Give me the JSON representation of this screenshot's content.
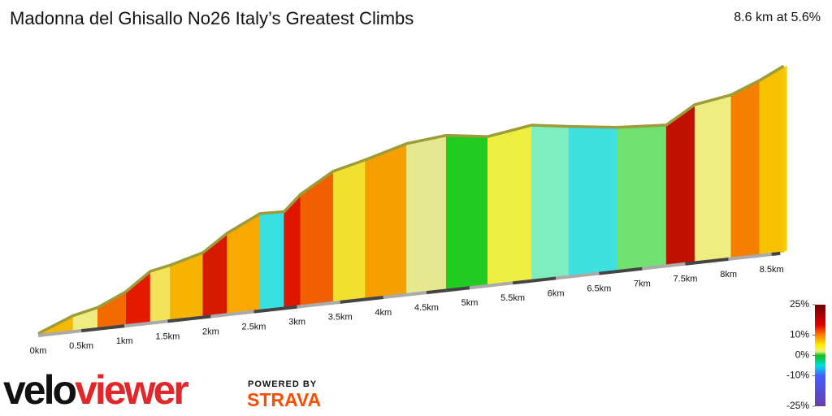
{
  "chart_data": {
    "type": "elevation-profile",
    "title": "Madonna del Ghisallo No26 Italy’s Greatest Climbs",
    "subtitle": "8.6 km at 5.6%",
    "x": [
      0,
      0.405,
      0.69,
      1.02,
      1.3,
      1.53,
      1.91,
      2.19,
      2.57,
      2.85,
      3.04,
      3.42,
      3.79,
      4.27,
      4.73,
      5.21,
      5.72,
      6.15,
      6.71,
      7.28,
      7.61,
      8.03,
      8.36,
      8.64
    ],
    "values": [
      0,
      36,
      50,
      83,
      128,
      138,
      161,
      204,
      245,
      243,
      283,
      333,
      353,
      383,
      393,
      378,
      395,
      381,
      365,
      357,
      401,
      416,
      445,
      475
    ],
    "colors": [
      "#f6b800",
      "#eeee80",
      "#f36a00",
      "#e41a00",
      "#f2e35a",
      "#f6b300",
      "#d61a00",
      "#f8a800",
      "#36e0e0",
      "#e01500",
      "#f06000",
      "#f2e030",
      "#f5a000",
      "#e6e890",
      "#20cc20",
      "#eeee40",
      "#7eeec0",
      "#40e0e0",
      "#70e070",
      "#c01000",
      "#eeee80",
      "#f58000",
      "#f7c000",
      "#f2d000"
    ],
    "xlim": [
      0,
      8.6
    ],
    "ylim": [
      0,
      480
    ],
    "xticks": [
      {
        "value": 0,
        "label": "0km"
      },
      {
        "value": 0.5,
        "label": "0.5km"
      },
      {
        "value": 1,
        "label": "1km"
      },
      {
        "value": 1.5,
        "label": "1.5km"
      },
      {
        "value": 2,
        "label": "2km"
      },
      {
        "value": 2.5,
        "label": "2.5km"
      },
      {
        "value": 3,
        "label": "3km"
      },
      {
        "value": 3.5,
        "label": "3.5km"
      },
      {
        "value": 4,
        "label": "4km"
      },
      {
        "value": 4.5,
        "label": "4.5km"
      },
      {
        "value": 5,
        "label": "5km"
      },
      {
        "value": 5.5,
        "label": "5.5km"
      },
      {
        "value": 6,
        "label": "6km"
      },
      {
        "value": 6.5,
        "label": "6.5km"
      },
      {
        "value": 7,
        "label": "7km"
      },
      {
        "value": 7.5,
        "label": "7.5km"
      },
      {
        "value": 8,
        "label": "8km"
      },
      {
        "value": 8.5,
        "label": "8.5km"
      }
    ],
    "color_scale": {
      "ylim": [
        -25,
        25
      ],
      "yticks": [
        {
          "value": 25,
          "label": "25%"
        },
        {
          "value": 10,
          "label": "10%"
        },
        {
          "value": 0,
          "label": "0%"
        },
        {
          "value": -10,
          "label": "-10%"
        },
        {
          "value": -25,
          "label": "-25%"
        }
      ],
      "stops": [
        {
          "value": 25,
          "color": "#6e0000"
        },
        {
          "value": 15,
          "color": "#e00000"
        },
        {
          "value": 10,
          "color": "#ff8000"
        },
        {
          "value": 5,
          "color": "#ffee00"
        },
        {
          "value": 2,
          "color": "#eef080"
        },
        {
          "value": 0,
          "color": "#10c010"
        },
        {
          "value": -5,
          "color": "#00e0e0"
        },
        {
          "value": -10,
          "color": "#4060ff"
        },
        {
          "value": -25,
          "color": "#6a3da8"
        }
      ]
    }
  },
  "brand": {
    "name_part1": "velo",
    "name_part2": "viewer",
    "powered_by": "POWERED BY",
    "partner": "STRAVA"
  }
}
